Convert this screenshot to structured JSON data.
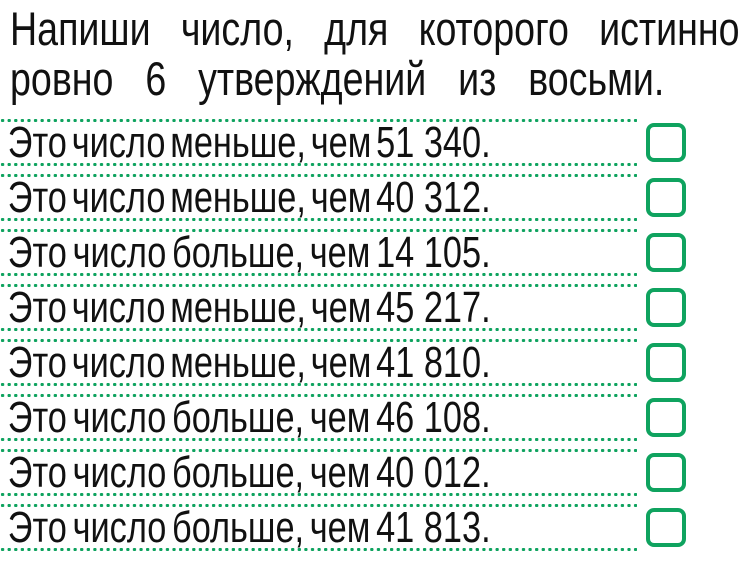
{
  "colors": {
    "green": "#0FA35F",
    "text": "#111111",
    "background": "#FFFFFF"
  },
  "title": {
    "line1": "Напиши число, для которого истинно",
    "line2": "ровно 6 утверждений из восьми."
  },
  "statements": [
    {
      "text": "Это число меньше, чем 51 340.",
      "checkbox_value": ""
    },
    {
      "text": "Это число меньше, чем 40 312.",
      "checkbox_value": ""
    },
    {
      "text": "Это число больше, чем 14 105.",
      "checkbox_value": ""
    },
    {
      "text": "Это число меньше, чем 45 217.",
      "checkbox_value": ""
    },
    {
      "text": "Это число меньше, чем 41 810.",
      "checkbox_value": ""
    },
    {
      "text": "Это число больше, чем 46 108.",
      "checkbox_value": ""
    },
    {
      "text": "Это число больше, чем 40 012.",
      "checkbox_value": ""
    },
    {
      "text": "Это число больше, чем 41 813.",
      "checkbox_value": ""
    }
  ]
}
